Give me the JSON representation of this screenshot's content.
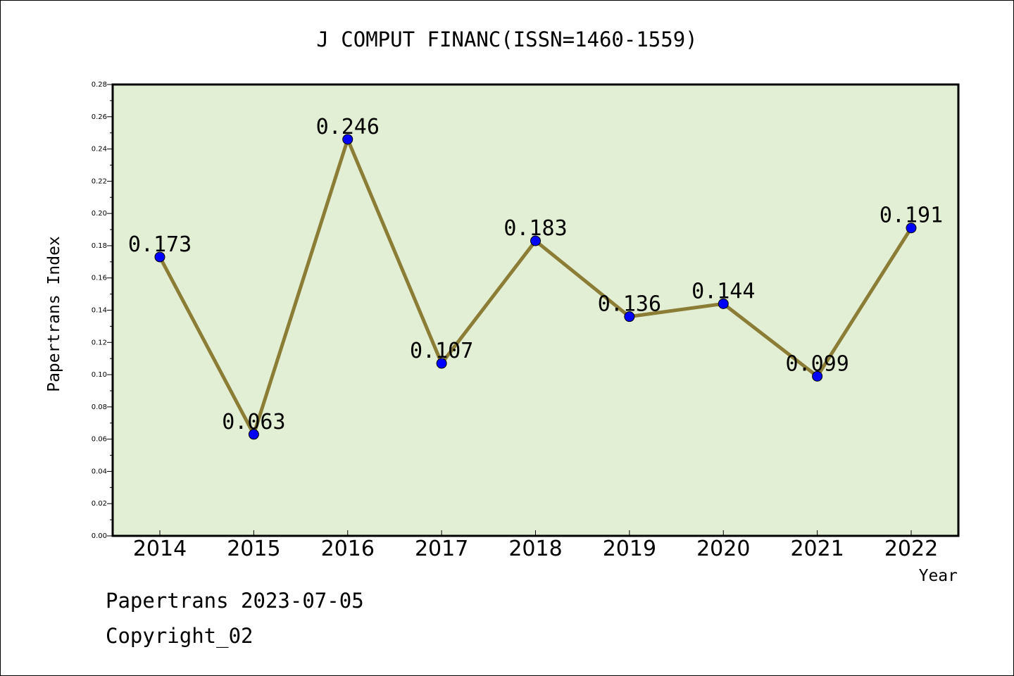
{
  "chart_data": {
    "type": "line",
    "title": "J COMPUT FINANC(ISSN=1460-1559)",
    "xlabel": "Year",
    "ylabel": "Papertrans Index",
    "categories": [
      "2014",
      "2015",
      "2016",
      "2017",
      "2018",
      "2019",
      "2020",
      "2021",
      "2022"
    ],
    "series": [
      {
        "values": [
          0.173,
          0.063,
          0.246,
          0.107,
          0.183,
          0.136,
          0.144,
          0.099,
          0.191
        ]
      }
    ],
    "data_labels": [
      "0.173",
      "0.063",
      "0.246",
      "0.107",
      "0.183",
      "0.136",
      "0.144",
      "0.099",
      "0.191"
    ],
    "ylim": [
      0,
      0.28
    ],
    "yticks": [
      "0.00",
      "0.02",
      "0.04",
      "0.06",
      "0.08",
      "0.10",
      "0.12",
      "0.14",
      "0.16",
      "0.18",
      "0.20",
      "0.22",
      "0.24",
      "0.26",
      "0.28"
    ],
    "grid": false,
    "legend": "none",
    "colors": {
      "plot_background": "#e2efd4",
      "line": "#8b7d35",
      "marker": "#0000ff"
    }
  },
  "footer": {
    "line1": "Papertrans 2023-07-05",
    "line2": "Copyright_02"
  }
}
